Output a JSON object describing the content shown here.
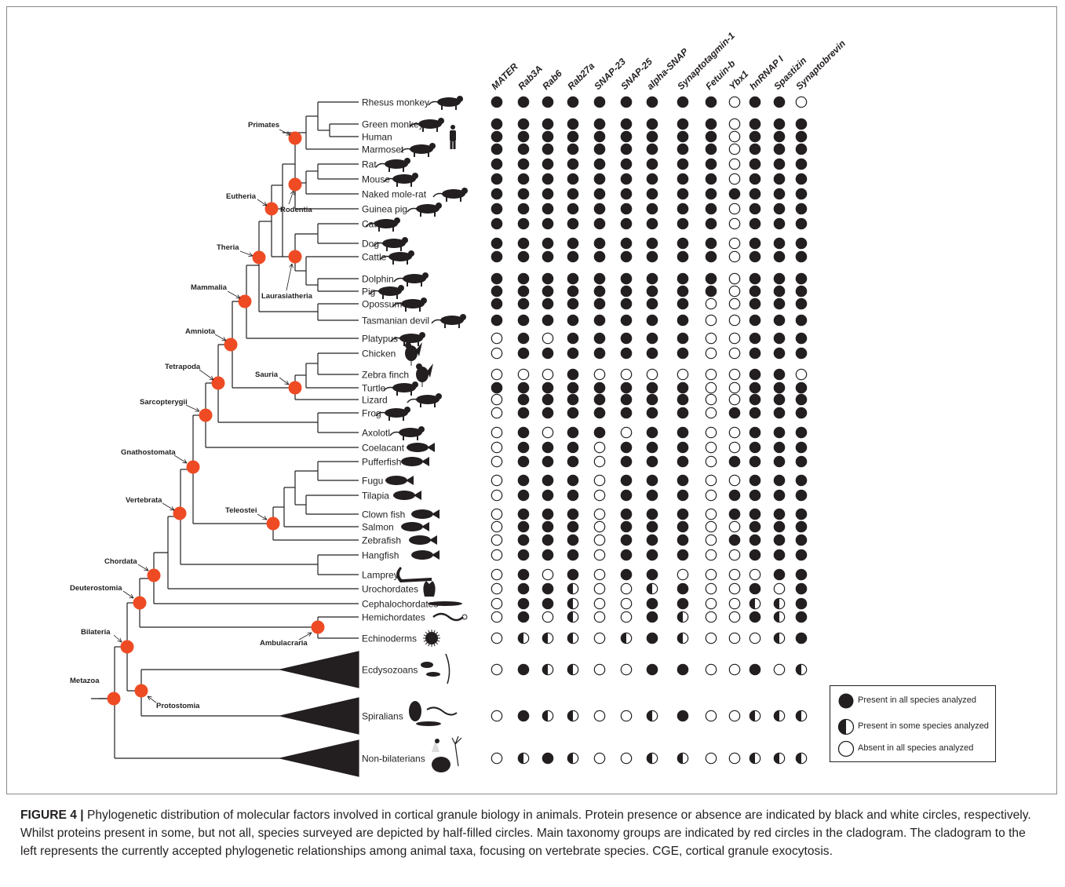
{
  "figure": {
    "caption_label": "FIGURE 4 |",
    "caption_text": " Phylogenetic distribution of molecular factors involved in cortical granule biology in animals. Protein presence or absence are indicated by black and white circles, respectively. Whilst proteins present in some, but not all, species surveyed are depicted by half-filled circles. Main taxonomy groups are indicated by red circles in the cladogram. The cladogram to the left represents the currently accepted phylogenetic relationships among animal taxa, focusing on vertebrate species. CGE, cortical granule exocytosis."
  },
  "colors": {
    "node": "#ee4b24",
    "ink": "#231f20",
    "frame": "#8a8a8a"
  },
  "proteins": [
    "MATER",
    "Rab3A",
    "Rab6",
    "Rab27a",
    "SNAP-23",
    "SNAP-25",
    "alpha-SNAP",
    "Synaptotagmin-1",
    "Fetuin-b",
    "Ybx1",
    "hnRNAP I",
    "Spastizin",
    "Synaptobrevin"
  ],
  "status_key": {
    "F": "present in all",
    "H": "present in some",
    "E": "absent in all"
  },
  "taxa": [
    {
      "name": "Rhesus monkey",
      "status": "FFFFFFFFFEFFE",
      "icon": "monkey-silhouette-icon"
    },
    {
      "name": "Green monkey",
      "status": "FFFFFFFFFEFFF",
      "icon": "monkey-silhouette-icon"
    },
    {
      "name": "Human",
      "status": "FFFFFFFFFEFFF",
      "icon": "human-silhouette-icon"
    },
    {
      "name": "Marmoset",
      "status": "FFFFFFFFFEFFF",
      "icon": "marmoset-silhouette-icon"
    },
    {
      "name": "Rat",
      "status": "FFFFFFFFFEFFF",
      "icon": "rat-silhouette-icon"
    },
    {
      "name": "Mouse",
      "status": "FFFFFFFFFEFFF",
      "icon": "mouse-silhouette-icon"
    },
    {
      "name": "Naked mole-rat",
      "status": "FFFFFFFFFFFFF",
      "icon": "mole-rat-silhouette-icon"
    },
    {
      "name": "Guinea pig",
      "status": "FFFFFFFFFEFFF",
      "icon": "guinea-pig-silhouette-icon"
    },
    {
      "name": "Cat",
      "status": "FFFFFFFFFEFFF",
      "icon": "cat-silhouette-icon"
    },
    {
      "name": "Dog",
      "status": "FFFFFFFFFEFFF",
      "icon": "dog-silhouette-icon"
    },
    {
      "name": "Cattle",
      "status": "FFFFFFFFFEFFF",
      "icon": "cattle-silhouette-icon"
    },
    {
      "name": "Dolphin",
      "status": "FFFFFFFFFEFFF",
      "icon": "dolphin-silhouette-icon"
    },
    {
      "name": "Pig",
      "status": "FFFFFFFFFEFFF",
      "icon": "pig-silhouette-icon"
    },
    {
      "name": "Opossum",
      "status": "FFFFFFFFEEFFF",
      "icon": "opossum-silhouette-icon"
    },
    {
      "name": "Tasmanian devil",
      "status": "FFFFFFFFEEFFF",
      "icon": "tasmanian-devil-silhouette-icon"
    },
    {
      "name": "Platypus",
      "status": "EFEFFFFFEEFFF",
      "icon": "platypus-silhouette-icon"
    },
    {
      "name": "Chicken",
      "status": "EFFFFFFFEEFFF",
      "icon": "chicken-silhouette-icon"
    },
    {
      "name": "Zebra finch",
      "status": "EEEFEEEEEEFFE",
      "icon": "bird-silhouette-icon"
    },
    {
      "name": "Turtle",
      "status": "FFFFFFFFEEFFF",
      "icon": "turtle-silhouette-icon"
    },
    {
      "name": "Lizard",
      "status": "EFFFFFFFEEFFF",
      "icon": "lizard-silhouette-icon"
    },
    {
      "name": "Frog",
      "status": "EFFFFFFFEFFFF",
      "icon": "frog-silhouette-icon"
    },
    {
      "name": "Axolotl",
      "status": "EFEFFEFFEEFFF",
      "icon": "axolotl-silhouette-icon"
    },
    {
      "name": "Coelacant",
      "status": "EFFFEFFFEEFFF",
      "icon": "coelacanth-silhouette-icon"
    },
    {
      "name": "Pufferfish",
      "status": "EFFFEFFFEFFFF",
      "icon": "pufferfish-silhouette-icon"
    },
    {
      "name": "Fugu",
      "status": "EFFFEFFFEEFFF",
      "icon": "fugu-silhouette-icon"
    },
    {
      "name": "Tilapia",
      "status": "EFFFEFFFEFFFF",
      "icon": "tilapia-silhouette-icon"
    },
    {
      "name": "Clown fish",
      "status": "EFFFEFFFEFFFF",
      "icon": "clownfish-silhouette-icon"
    },
    {
      "name": "Salmon",
      "status": "EFFFEFFFEEFFF",
      "icon": "salmon-silhouette-icon"
    },
    {
      "name": "Zebrafish",
      "status": "EFFFEFFFEFFFF",
      "icon": "zebrafish-silhouette-icon"
    },
    {
      "name": "Hangfish",
      "status": "EFFFEFFFEEFFF",
      "icon": "hagfish-silhouette-icon"
    },
    {
      "name": "Lamprey",
      "status": "EFEFEFFEEEEFF",
      "icon": "lamprey-silhouette-icon"
    },
    {
      "name": "Urochordates",
      "status": "EFFHEEHFEEFEF",
      "icon": "urochordate-silhouette-icon"
    },
    {
      "name": "Cephalochordates",
      "status": "EFFHEEFFEEHHF",
      "icon": "lancelet-silhouette-icon"
    },
    {
      "name": "Hemichordates",
      "status": "EFEHEEFHEEFHF",
      "icon": "acorn-worm-silhouette-icon"
    },
    {
      "name": "Echinoderms",
      "status": "EHHHEHFHEEEHF",
      "icon": "sea-urchin-silhouette-icon"
    },
    {
      "name": "Ecdysozoans",
      "status": "EFHHEEFFEEFEH",
      "icon": "arthropod-silhouette-icon"
    },
    {
      "name": "Spiralians",
      "status": "EFHHEEHFEEHHH",
      "icon": "mollusc-silhouette-icon"
    },
    {
      "name": "Non-bilaterians",
      "status": "EHFHEEHHEEHHH",
      "icon": "cnidarian-silhouette-icon"
    }
  ],
  "clades": {
    "metazoa": "Metazoa",
    "bilateria": "Bilateria",
    "protostomia": "Protostomia",
    "deuterostomia": "Deuterostomia",
    "ambulacraria": "Ambulacraria",
    "chordata": "Chordata",
    "vertebrata": "Vertebrata",
    "gnathostomata": "Gnathostomata",
    "teleostei": "Teleostei",
    "sarcopterygii": "Sarcopterygii",
    "tetrapoda": "Tetrapoda",
    "amniota": "Amniota",
    "sauria": "Sauria",
    "mammalia": "Mammalia",
    "theria": "Theria",
    "eutheria": "Eutheria",
    "laurasiatheria": "Laurasiatheria",
    "rodentia": "Rodentia",
    "primates": "Primates"
  },
  "legend": {
    "present_all": "Present in all species analyzed",
    "present_some": "Present in some species analyzed",
    "absent_all": "Absent in all species analyzed"
  }
}
